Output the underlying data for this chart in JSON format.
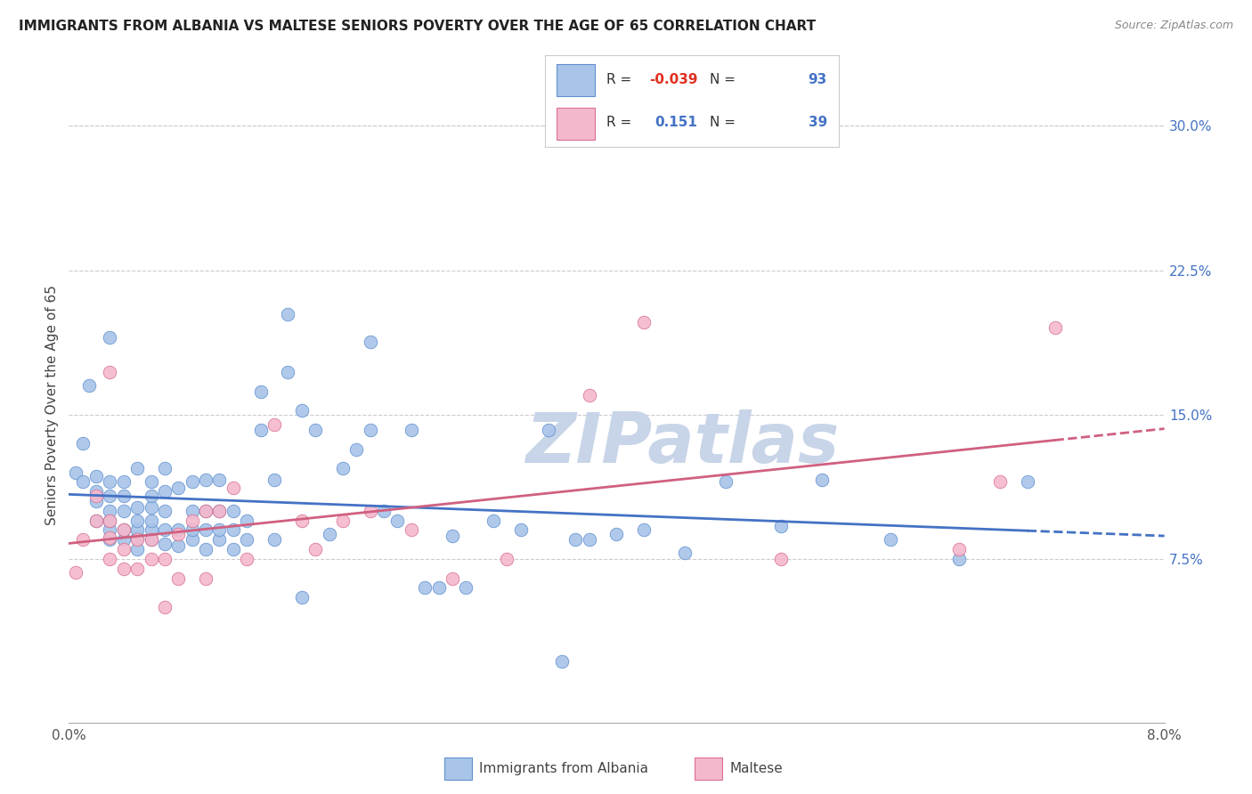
{
  "title": "IMMIGRANTS FROM ALBANIA VS MALTESE SENIORS POVERTY OVER THE AGE OF 65 CORRELATION CHART",
  "source": "Source: ZipAtlas.com",
  "ylabel": "Seniors Poverty Over the Age of 65",
  "y_ticks_right": [
    0.075,
    0.15,
    0.225,
    0.3
  ],
  "y_ticklabels_right": [
    "7.5%",
    "15.0%",
    "22.5%",
    "30.0%"
  ],
  "xlim": [
    0.0,
    0.08
  ],
  "ylim": [
    -0.01,
    0.32
  ],
  "albania_R": "-0.039",
  "albania_N": "93",
  "maltese_R": "0.151",
  "maltese_N": "39",
  "albania_color": "#a8c4e8",
  "maltese_color": "#f4b8cc",
  "albania_edge_color": "#6090d0",
  "maltese_edge_color": "#d87090",
  "albania_line_color": "#4472c4",
  "maltese_line_color": "#d06080",
  "legend_label_albania": "Immigrants from Albania",
  "legend_label_maltese": "Maltese",
  "watermark": "ZIPatlas",
  "watermark_color": "#c8d4e8",
  "albania_R_color": "#e03020",
  "N_color": "#4472c4",
  "maltese_R_color": "#4472c4",
  "albania_scatter_x": [
    0.0005,
    0.001,
    0.001,
    0.0015,
    0.002,
    0.002,
    0.002,
    0.002,
    0.003,
    0.003,
    0.003,
    0.003,
    0.003,
    0.003,
    0.003,
    0.004,
    0.004,
    0.004,
    0.004,
    0.004,
    0.005,
    0.005,
    0.005,
    0.005,
    0.005,
    0.005,
    0.006,
    0.006,
    0.006,
    0.006,
    0.006,
    0.006,
    0.007,
    0.007,
    0.007,
    0.007,
    0.007,
    0.008,
    0.008,
    0.008,
    0.009,
    0.009,
    0.009,
    0.009,
    0.01,
    0.01,
    0.01,
    0.01,
    0.011,
    0.011,
    0.011,
    0.011,
    0.012,
    0.012,
    0.012,
    0.013,
    0.013,
    0.014,
    0.014,
    0.015,
    0.015,
    0.016,
    0.016,
    0.017,
    0.017,
    0.018,
    0.019,
    0.02,
    0.021,
    0.022,
    0.022,
    0.023,
    0.024,
    0.025,
    0.026,
    0.027,
    0.028,
    0.029,
    0.031,
    0.033,
    0.035,
    0.036,
    0.037,
    0.038,
    0.04,
    0.042,
    0.045,
    0.048,
    0.052,
    0.055,
    0.06,
    0.065,
    0.07
  ],
  "albania_scatter_y": [
    0.12,
    0.115,
    0.135,
    0.165,
    0.095,
    0.105,
    0.11,
    0.118,
    0.085,
    0.09,
    0.095,
    0.1,
    0.108,
    0.115,
    0.19,
    0.085,
    0.09,
    0.1,
    0.108,
    0.115,
    0.08,
    0.086,
    0.09,
    0.095,
    0.102,
    0.122,
    0.085,
    0.09,
    0.095,
    0.102,
    0.108,
    0.115,
    0.083,
    0.09,
    0.1,
    0.11,
    0.122,
    0.082,
    0.09,
    0.112,
    0.085,
    0.09,
    0.1,
    0.115,
    0.08,
    0.09,
    0.1,
    0.116,
    0.085,
    0.09,
    0.1,
    0.116,
    0.08,
    0.09,
    0.1,
    0.085,
    0.095,
    0.142,
    0.162,
    0.085,
    0.116,
    0.172,
    0.202,
    0.055,
    0.152,
    0.142,
    0.088,
    0.122,
    0.132,
    0.142,
    0.188,
    0.1,
    0.095,
    0.142,
    0.06,
    0.06,
    0.087,
    0.06,
    0.095,
    0.09,
    0.142,
    0.022,
    0.085,
    0.085,
    0.088,
    0.09,
    0.078,
    0.115,
    0.092,
    0.116,
    0.085,
    0.075,
    0.115
  ],
  "maltese_scatter_x": [
    0.0005,
    0.001,
    0.002,
    0.002,
    0.003,
    0.003,
    0.003,
    0.003,
    0.004,
    0.004,
    0.004,
    0.005,
    0.005,
    0.006,
    0.006,
    0.007,
    0.007,
    0.008,
    0.008,
    0.009,
    0.01,
    0.01,
    0.011,
    0.012,
    0.013,
    0.015,
    0.017,
    0.018,
    0.02,
    0.022,
    0.025,
    0.028,
    0.032,
    0.038,
    0.042,
    0.052,
    0.065,
    0.068,
    0.072
  ],
  "maltese_scatter_y": [
    0.068,
    0.085,
    0.095,
    0.108,
    0.172,
    0.075,
    0.086,
    0.095,
    0.07,
    0.08,
    0.09,
    0.07,
    0.085,
    0.075,
    0.085,
    0.05,
    0.075,
    0.065,
    0.088,
    0.095,
    0.065,
    0.1,
    0.1,
    0.112,
    0.075,
    0.145,
    0.095,
    0.08,
    0.095,
    0.1,
    0.09,
    0.065,
    0.075,
    0.16,
    0.198,
    0.075,
    0.08,
    0.115,
    0.195
  ]
}
